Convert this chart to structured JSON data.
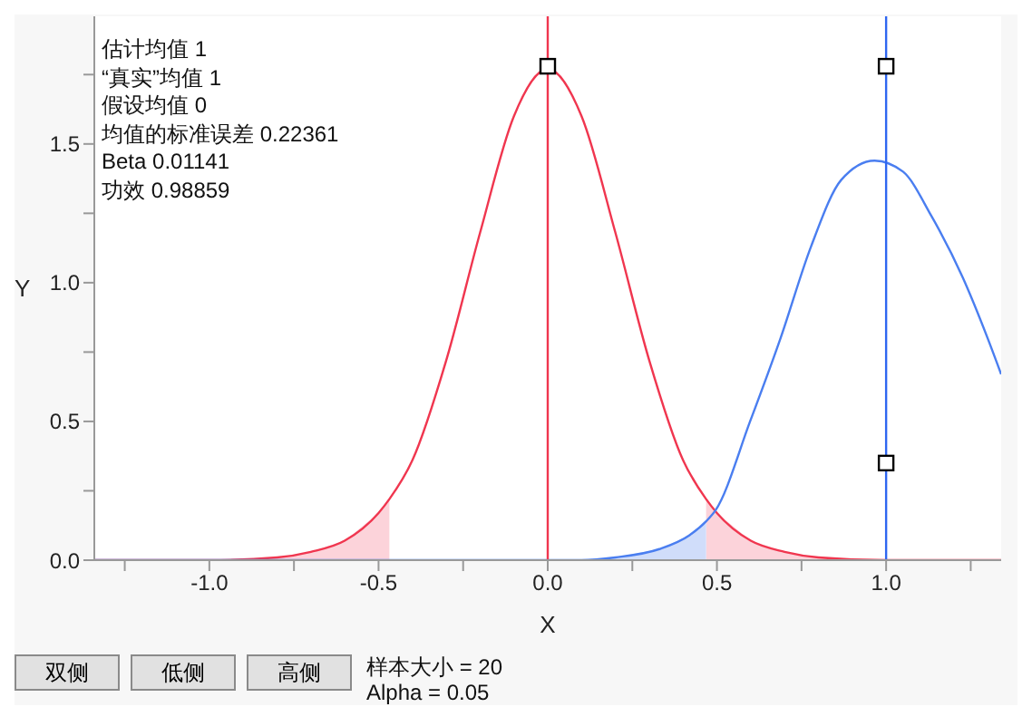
{
  "chart_data": {
    "type": "line",
    "xlabel": "X",
    "ylabel": "Y",
    "xlim": [
      -1.34,
      1.34
    ],
    "xticks": [
      {
        "value": -1.25,
        "label": null
      },
      {
        "value": -1,
        "label": "-1.0"
      },
      {
        "value": -0.75,
        "label": null
      },
      {
        "value": -0.5,
        "label": "-0.5"
      },
      {
        "value": -0.25,
        "label": null
      },
      {
        "value": 0,
        "label": "0.0"
      },
      {
        "value": 0.25,
        "label": null
      },
      {
        "value": 0.5,
        "label": "0.5"
      },
      {
        "value": 0.75,
        "label": null
      },
      {
        "value": 1,
        "label": "1.0"
      },
      {
        "value": 1.25,
        "label": null
      }
    ],
    "ylim": [
      0,
      1.96
    ],
    "yticks": [
      {
        "value": 0,
        "label": "0.0"
      },
      {
        "value": 0.25,
        "label": null
      },
      {
        "value": 0.5,
        "label": "0.5"
      },
      {
        "value": 0.75,
        "label": null
      },
      {
        "value": 1,
        "label": "1.0"
      },
      {
        "value": 1.25,
        "label": null
      },
      {
        "value": 1.5,
        "label": "1.5"
      },
      {
        "value": 1.75,
        "label": null
      }
    ],
    "marker": "none",
    "line_style": "solid",
    "series": [
      {
        "type": "area",
        "color": "#fcd3da",
        "x": [
          -1.34,
          -1,
          -0.8,
          -0.7,
          -0.6,
          -0.5,
          -0.468
        ],
        "values": [
          0,
          0,
          0.01,
          0.03,
          0.07,
          0.17,
          0.22
        ]
      },
      {
        "type": "area",
        "color": "#fcd3da",
        "x": [
          0.468,
          0.5,
          0.6,
          0.7,
          0.8,
          1,
          1.34
        ],
        "values": [
          0.22,
          0.17,
          0.07,
          0.03,
          0.01,
          0,
          0
        ]
      },
      {
        "type": "area",
        "color": "#d0ddfa",
        "x": [
          -1.34,
          0.1,
          0.2,
          0.33,
          0.419,
          0.468
        ],
        "values": [
          0,
          0,
          0.01,
          0.04,
          0.09,
          0.14
        ]
      },
      {
        "color": "#f0364f",
        "x": [
          -1.34,
          -1,
          -0.8,
          -0.7,
          -0.6,
          -0.5,
          -0.468,
          -0.4,
          -0.3,
          -0.2,
          -0.1,
          0,
          0.1,
          0.2,
          0.3,
          0.4,
          0.468,
          0.5,
          0.6,
          0.7,
          0.8,
          1,
          1.34
        ],
        "values": [
          0,
          0,
          0.01,
          0.03,
          0.07,
          0.17,
          0.22,
          0.36,
          0.72,
          1.18,
          1.6,
          1.77,
          1.6,
          1.18,
          0.72,
          0.36,
          0.22,
          0.17,
          0.07,
          0.03,
          0.01,
          0,
          0
        ]
      },
      {
        "color": "#4a7ef0",
        "x": [
          -1.34,
          0.1,
          0.2,
          0.33,
          0.419,
          0.468,
          0.496,
          0.598,
          0.688,
          0.778,
          0.867,
          0.966,
          1.05,
          1.134,
          1.226,
          1.3,
          1.34
        ],
        "values": [
          0,
          0,
          0.01,
          0.04,
          0.09,
          0.14,
          0.18,
          0.5,
          0.8,
          1.13,
          1.37,
          1.44,
          1.4,
          1.24,
          1.02,
          0.8,
          0.67
        ]
      },
      {
        "type": "scatter",
        "color": "#000000",
        "marker": "square",
        "x": [
          0,
          1,
          1
        ],
        "values": [
          1.78,
          1.78,
          0.35
        ]
      }
    ],
    "ref_lines": [
      {
        "axis": "x",
        "value": 0,
        "color": "#f0364f"
      },
      {
        "axis": "x",
        "value": 1,
        "color": "#2f66f0"
      }
    ],
    "annotations": [
      "估计均值 1",
      "“真实”均值 1",
      "假设均值 0",
      "均值的标准误差 0.22361",
      "Beta 0.01141",
      "功效 0.98859",
      "双侧",
      "低侧",
      "高侧",
      "样本大小 = 20",
      "Alpha = 0.05"
    ]
  }
}
